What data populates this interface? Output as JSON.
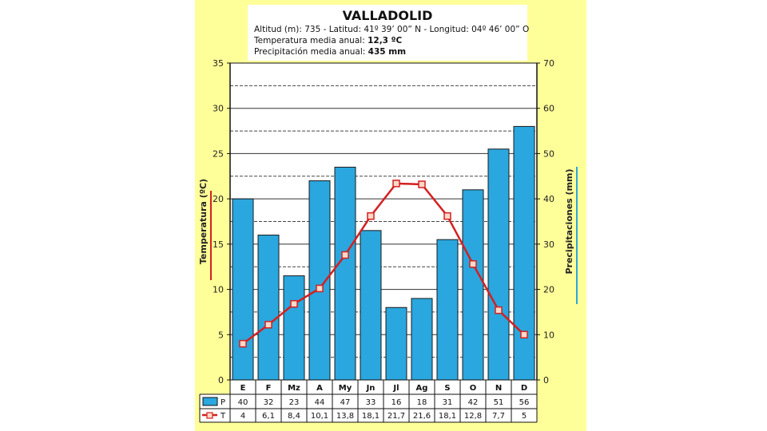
{
  "header": {
    "title": "VALLADOLID",
    "line1": "Altitud (m): 735 - Latitud: 41º 39’ 00” N - Longitud: 04º 46’ 00” O",
    "temp_label": "Temperatura media anual:",
    "temp_value": "12,3 ºC",
    "precip_label": "Precipitación media anual:",
    "precip_value": "435 mm"
  },
  "chart_data": {
    "type": "bar",
    "title": "VALLADOLID",
    "categories": [
      "E",
      "F",
      "Mz",
      "A",
      "My",
      "Jn",
      "Jl",
      "Ag",
      "S",
      "O",
      "N",
      "D"
    ],
    "series": [
      {
        "name": "P",
        "type": "bar",
        "axis": "right",
        "color": "#2aa7de",
        "values": [
          40,
          32,
          23,
          44,
          47,
          33,
          16,
          18,
          31,
          42,
          51,
          56
        ],
        "labels": [
          "40",
          "32",
          "23",
          "44",
          "47",
          "33",
          "16",
          "18",
          "31",
          "42",
          "51",
          "56"
        ]
      },
      {
        "name": "T",
        "type": "line",
        "axis": "left",
        "color": "#d42020",
        "values": [
          4,
          6.1,
          8.4,
          10.1,
          13.8,
          18.1,
          21.7,
          21.6,
          18.1,
          12.8,
          7.7,
          5
        ],
        "labels": [
          "4",
          "6,1",
          "8,4",
          "10,1",
          "13,8",
          "18,1",
          "21,7",
          "21,6",
          "18,1",
          "12,8",
          "7,7",
          "5"
        ]
      }
    ],
    "ylabel_left": "Temperatura (ºC)",
    "ylabel_right": "Precipitaciones (mm)",
    "ylim_left": [
      0,
      35
    ],
    "ylim_right": [
      0,
      70
    ],
    "yticks_left": [
      "0",
      "5",
      "10",
      "15",
      "20",
      "25",
      "30",
      "35"
    ],
    "yticks_right": [
      "0",
      "10",
      "20",
      "30",
      "40",
      "50",
      "60",
      "70"
    ],
    "grid": true
  }
}
